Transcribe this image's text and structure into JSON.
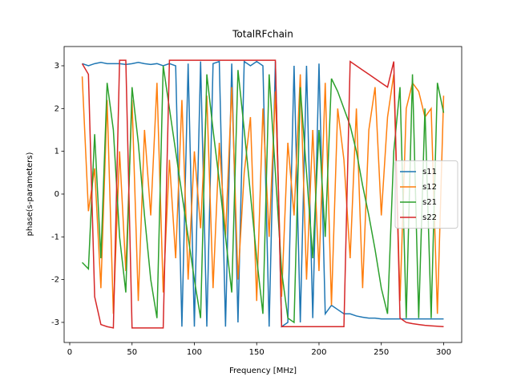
{
  "chart_data": {
    "type": "line",
    "title": "TotalRFchain",
    "x_label": "Frequency [MHz]",
    "y_label": "phase(s-parameters)",
    "x": [
      10,
      15,
      20,
      25,
      30,
      35,
      40,
      45,
      50,
      55,
      60,
      65,
      70,
      75,
      80,
      85,
      90,
      95,
      100,
      105,
      110,
      115,
      120,
      125,
      130,
      135,
      140,
      145,
      150,
      155,
      160,
      165,
      170,
      175,
      180,
      185,
      190,
      195,
      200,
      205,
      210,
      215,
      220,
      225,
      230,
      235,
      240,
      245,
      250,
      255,
      260,
      265,
      270,
      275,
      280,
      285,
      290,
      295,
      300
    ],
    "series": [
      {
        "name": "s11",
        "color": "#1f77b4",
        "values": [
          3.05,
          3.0,
          3.05,
          3.08,
          3.05,
          3.05,
          3.05,
          3.03,
          3.05,
          3.08,
          3.05,
          3.03,
          3.05,
          3.0,
          3.05,
          3.0,
          -3.1,
          3.05,
          -3.1,
          3.1,
          -3.1,
          3.05,
          3.1,
          -3.1,
          3.05,
          -3.0,
          3.1,
          3.0,
          3.1,
          3.0,
          -3.1,
          3.1,
          -3.1,
          -3.0,
          3.0,
          -3.0,
          3.0,
          -2.9,
          3.05,
          -2.8,
          -2.6,
          -2.7,
          -2.8,
          -2.8,
          -2.85,
          -2.88,
          -2.9,
          -2.9,
          -2.92,
          -2.92,
          -2.92,
          -2.92,
          -2.92,
          -2.92,
          -2.92,
          -2.92,
          -2.92,
          -2.92,
          -2.92
        ]
      },
      {
        "name": "s12",
        "color": "#ff7f0e",
        "values": [
          2.75,
          -0.4,
          0.6,
          -2.2,
          2.2,
          -2.8,
          1.0,
          -1.8,
          2.2,
          -2.5,
          1.5,
          -0.5,
          2.6,
          -2.3,
          0.8,
          -1.5,
          2.2,
          -2.0,
          1.0,
          -0.8,
          2.3,
          -2.2,
          1.2,
          -1.0,
          2.5,
          -2.0,
          0.5,
          1.8,
          -2.5,
          2.0,
          -1.0,
          2.4,
          -2.4,
          1.2,
          -0.5,
          2.8,
          -2.0,
          1.5,
          -1.8,
          2.6,
          -2.6,
          2.0,
          0.8,
          -1.5,
          2.0,
          -2.2,
          1.5,
          2.5,
          -0.5,
          1.8,
          2.8,
          -2.5,
          2.0,
          2.6,
          2.4,
          1.8,
          2.0,
          -2.8,
          2.3
        ]
      },
      {
        "name": "s21",
        "color": "#2ca02c",
        "values": [
          -1.6,
          -1.75,
          1.4,
          -1.5,
          2.6,
          1.5,
          -1.0,
          -2.3,
          2.5,
          1.2,
          -0.5,
          -2.0,
          -2.9,
          3.0,
          2.0,
          1.0,
          0.0,
          -1.0,
          -2.0,
          -2.9,
          2.8,
          1.5,
          0.3,
          -1.0,
          -2.3,
          2.9,
          1.5,
          0.0,
          -1.5,
          -2.8,
          2.8,
          0.5,
          -1.8,
          -2.9,
          -3.0,
          2.5,
          0.5,
          -1.5,
          1.5,
          -1.0,
          2.7,
          2.4,
          2.0,
          1.6,
          1.0,
          0.2,
          -0.5,
          -1.3,
          -2.2,
          -2.8,
          1.0,
          2.5,
          -2.9,
          2.8,
          -2.9,
          2.0,
          -2.9,
          2.6,
          1.9
        ]
      },
      {
        "name": "s22",
        "color": "#d62728",
        "values": [
          3.05,
          2.8,
          -2.4,
          -3.05,
          -3.1,
          -3.13,
          3.13,
          3.13,
          -3.13,
          -3.13,
          -3.13,
          -3.13,
          -3.13,
          -3.13,
          3.13,
          3.13,
          3.13,
          3.13,
          3.13,
          3.13,
          3.13,
          3.13,
          3.13,
          3.13,
          3.13,
          3.13,
          3.13,
          3.13,
          3.13,
          3.13,
          3.13,
          3.13,
          -3.1,
          -3.1,
          -3.1,
          -3.1,
          -3.1,
          -3.1,
          -3.1,
          -3.1,
          -3.1,
          -3.1,
          -3.1,
          3.1,
          3.0,
          2.9,
          2.8,
          2.7,
          2.6,
          2.5,
          3.1,
          -2.9,
          -3.0,
          -3.03,
          -3.05,
          -3.07,
          -3.08,
          -3.09,
          -3.1
        ]
      }
    ],
    "xlim": [
      -4.5,
      314.5
    ],
    "ylim": [
      -3.47,
      3.45
    ],
    "xticks": [
      0,
      50,
      100,
      150,
      200,
      250,
      300
    ],
    "yticks": [
      -3,
      -2,
      -1,
      0,
      1,
      2,
      3
    ],
    "legend": "center right"
  }
}
